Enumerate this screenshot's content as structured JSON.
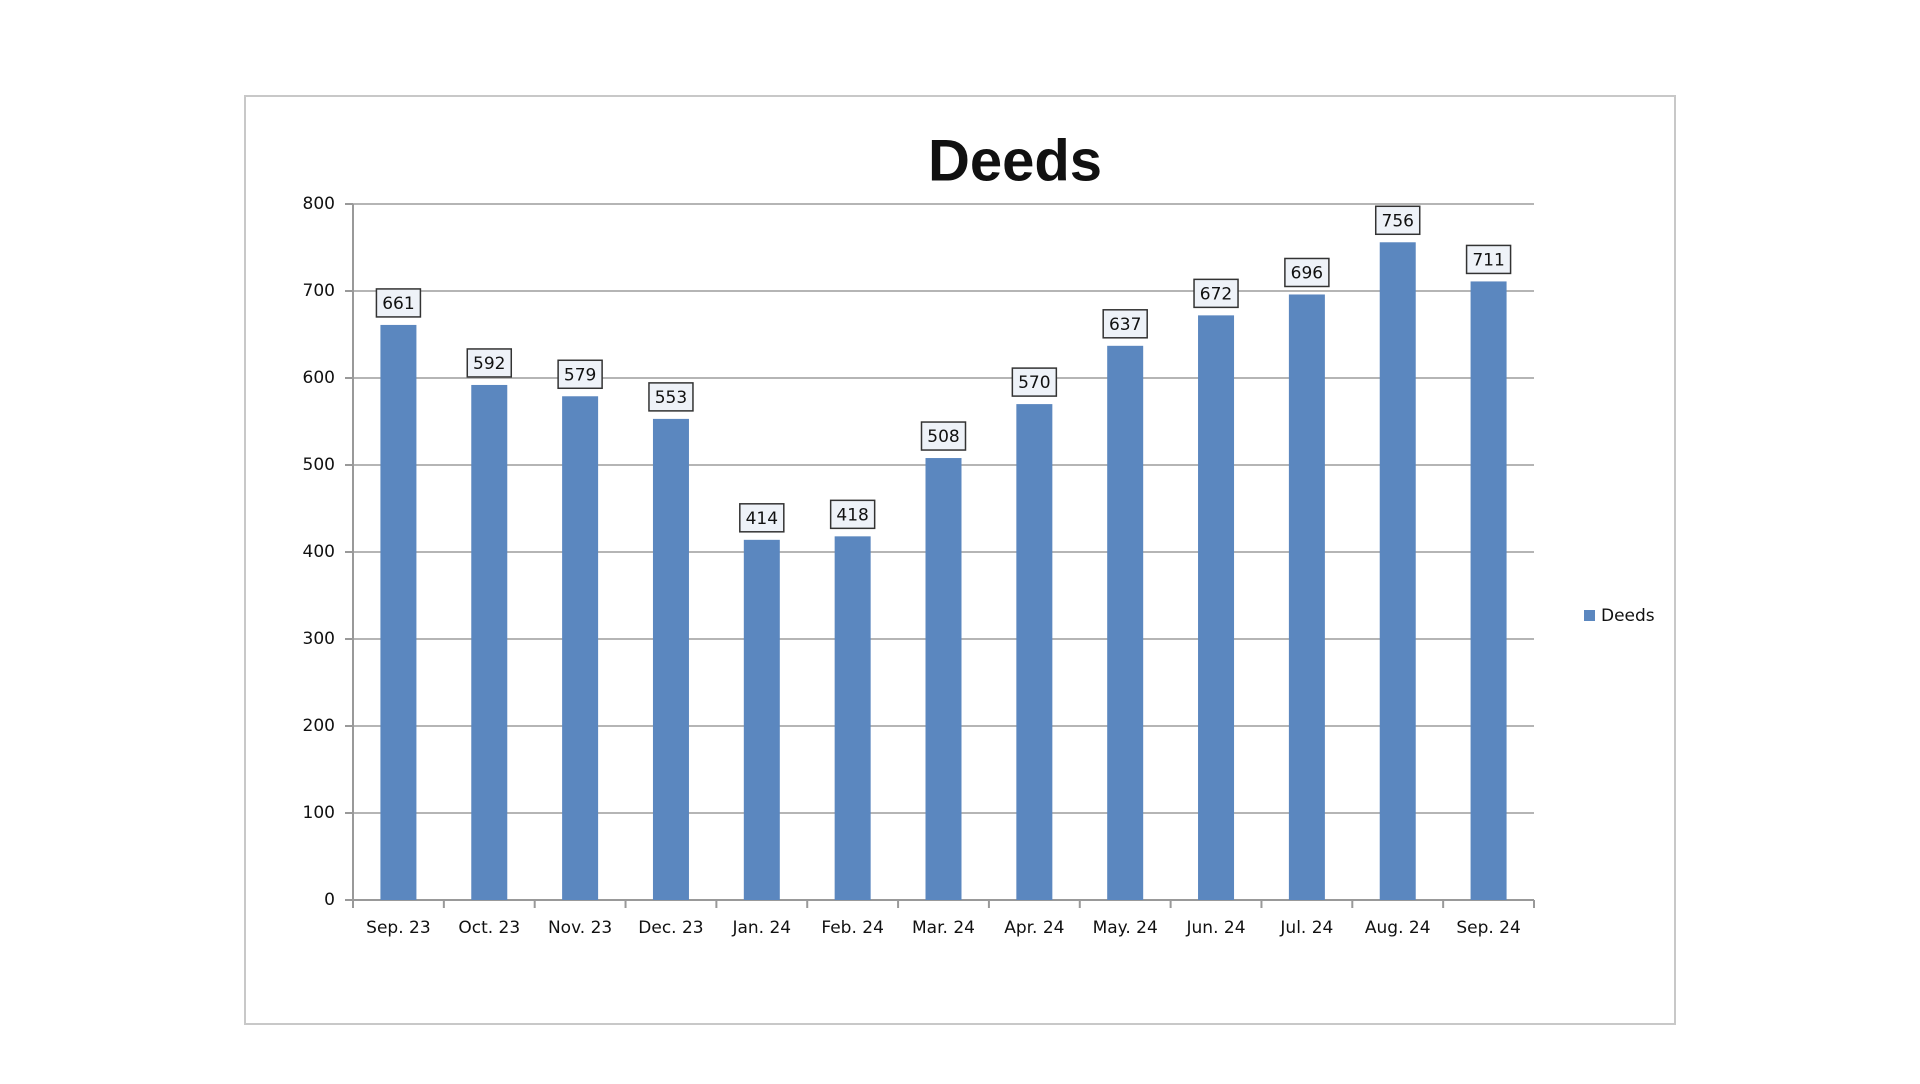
{
  "chart_data": {
    "type": "bar",
    "title": "Deeds",
    "categories": [
      "Sep. 23",
      "Oct. 23",
      "Nov. 23",
      "Dec. 23",
      "Jan. 24",
      "Feb. 24",
      "Mar. 24",
      "Apr. 24",
      "May. 24",
      "Jun. 24",
      "Jul. 24",
      "Aug. 24",
      "Sep. 24"
    ],
    "series": [
      {
        "name": "Deeds",
        "color": "#5b87bf",
        "values": [
          661,
          592,
          579,
          553,
          414,
          418,
          508,
          570,
          637,
          672,
          696,
          756,
          711
        ]
      }
    ],
    "ylim": [
      0,
      800
    ],
    "yticks": [
      0,
      100,
      200,
      300,
      400,
      500,
      600,
      700,
      800
    ],
    "grid": true,
    "legend": "right"
  }
}
